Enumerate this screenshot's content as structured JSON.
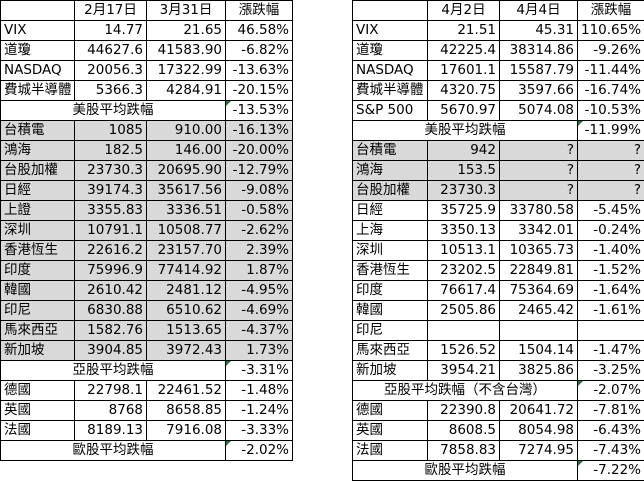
{
  "left": {
    "header": [
      "",
      "2月17日",
      "3月31日",
      "漲跌幅"
    ],
    "rows": [
      {
        "kind": "us",
        "cells": [
          "VIX",
          "14.77",
          "21.65",
          "46.58%"
        ]
      },
      {
        "kind": "us",
        "cells": [
          "道瓊",
          "44627.6",
          "41583.90",
          "-6.82%"
        ]
      },
      {
        "kind": "us",
        "cells": [
          "NASDAQ",
          "20056.3",
          "17322.99",
          "-13.63%"
        ]
      },
      {
        "kind": "us",
        "cells": [
          "費城半導體",
          "5366.3",
          "4284.91",
          "-20.15%"
        ]
      },
      {
        "kind": "avg",
        "label": "美股平均跌幅",
        "value": "-13.53%"
      },
      {
        "kind": "asia",
        "cells": [
          "台積電",
          "1085",
          "910.00",
          "-16.13%"
        ]
      },
      {
        "kind": "asia",
        "cells": [
          "鴻海",
          "182.5",
          "146.00",
          "-20.00%"
        ]
      },
      {
        "kind": "asia",
        "cells": [
          "台股加權",
          "23730.3",
          "20695.90",
          "-12.79%"
        ]
      },
      {
        "kind": "asia",
        "cells": [
          "日經",
          "39174.3",
          "35617.56",
          "-9.08%"
        ]
      },
      {
        "kind": "asia",
        "cells": [
          "上證",
          "3355.83",
          "3336.51",
          "-0.58%"
        ]
      },
      {
        "kind": "asia",
        "cells": [
          "深圳",
          "10791.1",
          "10508.77",
          "-2.62%"
        ]
      },
      {
        "kind": "asia",
        "cells": [
          "香港恆生",
          "22616.2",
          "23157.70",
          "2.39%"
        ]
      },
      {
        "kind": "asia",
        "cells": [
          "印度",
          "75996.9",
          "77414.92",
          "1.87%"
        ]
      },
      {
        "kind": "asia",
        "cells": [
          "韓國",
          "2610.42",
          "2481.12",
          "-4.95%"
        ]
      },
      {
        "kind": "asia",
        "cells": [
          "印尼",
          "6830.88",
          "6510.62",
          "-4.69%"
        ]
      },
      {
        "kind": "asia",
        "cells": [
          "馬來西亞",
          "1582.76",
          "1513.65",
          "-4.37%"
        ]
      },
      {
        "kind": "asia",
        "cells": [
          "新加坡",
          "3904.85",
          "3972.43",
          "1.73%"
        ]
      },
      {
        "kind": "avg",
        "label": "亞股平均跌幅",
        "value": "-3.31%"
      },
      {
        "kind": "eu",
        "cells": [
          "德國",
          "22798.1",
          "22461.52",
          "-1.48%"
        ]
      },
      {
        "kind": "eu",
        "cells": [
          "英國",
          "8768",
          "8658.85",
          "-1.24%"
        ]
      },
      {
        "kind": "eu",
        "cells": [
          "法國",
          "8189.13",
          "7916.08",
          "-3.33%"
        ]
      },
      {
        "kind": "avg",
        "label": "歐股平均跌幅",
        "value": "-2.02%"
      }
    ]
  },
  "right": {
    "header": [
      "",
      "4月2日",
      "4月4日",
      "漲跌幅"
    ],
    "rows": [
      {
        "kind": "us",
        "cells": [
          "VIX",
          "21.51",
          "45.31",
          "110.65%"
        ]
      },
      {
        "kind": "us",
        "cells": [
          "道瓊",
          "42225.4",
          "38314.86",
          "-9.26%"
        ]
      },
      {
        "kind": "us",
        "cells": [
          "NASDAQ",
          "17601.1",
          "15587.79",
          "-11.44%"
        ]
      },
      {
        "kind": "us",
        "cells": [
          "費城半導體",
          "4320.75",
          "3597.66",
          "-16.74%"
        ]
      },
      {
        "kind": "us",
        "cells": [
          "S&P 500",
          "5670.97",
          "5074.08",
          "-10.53%"
        ]
      },
      {
        "kind": "avg",
        "label": "美股平均跌幅",
        "value": "-11.99%"
      },
      {
        "kind": "asia",
        "cells": [
          "台積電",
          "942",
          "?",
          "?"
        ]
      },
      {
        "kind": "asia",
        "cells": [
          "鴻海",
          "153.5",
          "?",
          "?"
        ]
      },
      {
        "kind": "asia",
        "cells": [
          "台股加權",
          "23730.3",
          "?",
          "?"
        ]
      },
      {
        "kind": "white",
        "cells": [
          "日經",
          "35725.9",
          "33780.58",
          "-5.45%"
        ]
      },
      {
        "kind": "white",
        "cells": [
          "上海",
          "3350.13",
          "3342.01",
          "-0.24%"
        ]
      },
      {
        "kind": "white",
        "cells": [
          "深圳",
          "10513.1",
          "10365.73",
          "-1.40%"
        ]
      },
      {
        "kind": "white",
        "cells": [
          "香港恆生",
          "23202.5",
          "22849.81",
          "-1.52%"
        ]
      },
      {
        "kind": "white",
        "cells": [
          "印度",
          "76617.4",
          "75364.69",
          "-1.64%"
        ]
      },
      {
        "kind": "white",
        "cells": [
          "韓國",
          "2505.86",
          "2465.42",
          "-1.61%"
        ]
      },
      {
        "kind": "white",
        "cells": [
          "印尼",
          "",
          "",
          ""
        ]
      },
      {
        "kind": "white",
        "cells": [
          "馬來西亞",
          "1526.52",
          "1504.14",
          "-1.47%"
        ]
      },
      {
        "kind": "white",
        "cells": [
          "新加坡",
          "3954.21",
          "3825.86",
          "-3.25%"
        ]
      },
      {
        "kind": "avg",
        "label": "亞股平均跌幅（不含台灣）",
        "value": "-2.07%"
      },
      {
        "kind": "white",
        "cells": [
          "德國",
          "22390.8",
          "20641.72",
          "-7.81%"
        ]
      },
      {
        "kind": "white",
        "cells": [
          "英國",
          "8608.5",
          "8054.98",
          "-6.43%"
        ]
      },
      {
        "kind": "white",
        "cells": [
          "法國",
          "7858.83",
          "7274.95",
          "-7.43%"
        ]
      },
      {
        "kind": "avg",
        "label": "歐股平均跌幅",
        "value": "-7.22%"
      }
    ]
  }
}
